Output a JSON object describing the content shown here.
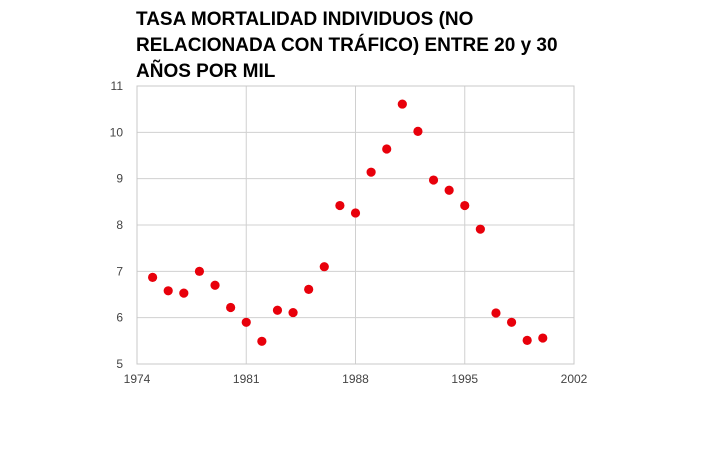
{
  "chart_data": {
    "type": "scatter",
    "title": "TASA MORTALIDAD INDIVIDUOS (NO RELACIONADA CON TRÁFICO) ENTRE 20 y 30 AÑOS POR MIL",
    "xlabel": "",
    "ylabel": "",
    "xlim": [
      1974,
      2002
    ],
    "ylim": [
      5,
      11
    ],
    "xticks": [
      1974,
      1981,
      1988,
      1995,
      2002
    ],
    "yticks": [
      5,
      6,
      7,
      8,
      9,
      10,
      11
    ],
    "grid": true,
    "legend": "none",
    "marker_color": "#e8000b",
    "series": [
      {
        "x": [
          1975,
          1976,
          1977,
          1978,
          1979,
          1980,
          1981,
          1982,
          1983,
          1984,
          1985,
          1986,
          1987,
          1988,
          1989,
          1990,
          1991,
          1992,
          1993,
          1994,
          1995,
          1996,
          1997,
          1998,
          1999,
          2000
        ],
        "y": [
          6.87,
          6.58,
          6.53,
          7.0,
          6.7,
          6.22,
          5.9,
          5.49,
          6.16,
          6.11,
          6.61,
          7.1,
          8.42,
          8.26,
          9.14,
          9.64,
          10.61,
          10.02,
          8.97,
          8.75,
          8.42,
          7.91,
          6.1,
          5.9,
          5.51,
          5.56
        ]
      }
    ]
  }
}
